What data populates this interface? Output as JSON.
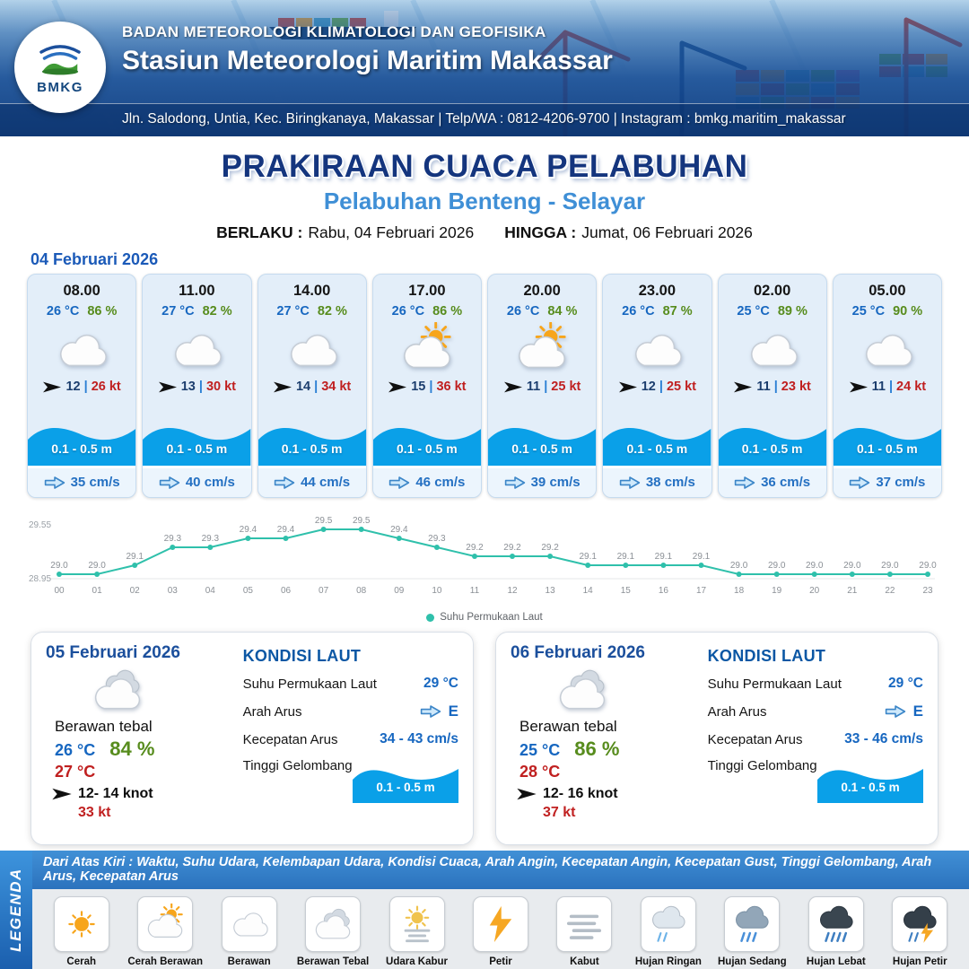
{
  "header": {
    "logo_text": "BMKG",
    "agency": "BADAN METEOROLOGI KLIMATOLOGI DAN GEOFISIKA",
    "station": "Stasiun Meteorologi Maritim Makassar",
    "contact": "Jln. Salodong, Untia, Kec. Biringkanaya, Makassar | Telp/WA : 0812-4206-9700 | Instagram : bmkg.maritim_makassar"
  },
  "title": {
    "main": "PRAKIRAAN CUACA PELABUHAN",
    "subtitle": "Pelabuhan Benteng - Selayar",
    "valid_label": "BERLAKU :",
    "valid_value": "Rabu, 04 Februari 2026",
    "until_label": "HINGGA :",
    "until_value": "Jumat, 06 Februari 2026"
  },
  "forecast_date": "04 Februari 2026",
  "labels": {
    "wind_sep": "|"
  },
  "hourly": [
    {
      "time": "08.00",
      "temp": "26 °C",
      "humidity": "86 %",
      "icon": "berawan",
      "wind": "12",
      "gust": "26 kt",
      "wave": "0.1 - 0.5 m",
      "current": "35 cm/s"
    },
    {
      "time": "11.00",
      "temp": "27 °C",
      "humidity": "82 %",
      "icon": "berawan",
      "wind": "13",
      "gust": "30 kt",
      "wave": "0.1 - 0.5 m",
      "current": "40 cm/s"
    },
    {
      "time": "14.00",
      "temp": "27 °C",
      "humidity": "82 %",
      "icon": "berawan",
      "wind": "14",
      "gust": "34 kt",
      "wave": "0.1 - 0.5 m",
      "current": "44 cm/s"
    },
    {
      "time": "17.00",
      "temp": "26 °C",
      "humidity": "86 %",
      "icon": "cerah-berawan",
      "wind": "15",
      "gust": "36 kt",
      "wave": "0.1 - 0.5 m",
      "current": "46 cm/s"
    },
    {
      "time": "20.00",
      "temp": "26 °C",
      "humidity": "84 %",
      "icon": "cerah-berawan",
      "wind": "11",
      "gust": "25 kt",
      "wave": "0.1 - 0.5 m",
      "current": "39 cm/s"
    },
    {
      "time": "23.00",
      "temp": "26 °C",
      "humidity": "87 %",
      "icon": "berawan",
      "wind": "12",
      "gust": "25 kt",
      "wave": "0.1 - 0.5 m",
      "current": "38 cm/s"
    },
    {
      "time": "02.00",
      "temp": "25 °C",
      "humidity": "89 %",
      "icon": "berawan",
      "wind": "11",
      "gust": "23 kt",
      "wave": "0.1 - 0.5 m",
      "current": "36 cm/s"
    },
    {
      "time": "05.00",
      "temp": "25 °C",
      "humidity": "90 %",
      "icon": "berawan",
      "wind": "11",
      "gust": "24 kt",
      "wave": "0.1 - 0.5 m",
      "current": "37 cm/s"
    }
  ],
  "chart_data": {
    "type": "line",
    "series_name": "Suhu Permukaan Laut",
    "x": [
      "00",
      "01",
      "02",
      "03",
      "04",
      "05",
      "06",
      "07",
      "08",
      "09",
      "10",
      "11",
      "12",
      "13",
      "14",
      "15",
      "16",
      "17",
      "18",
      "19",
      "20",
      "21",
      "22",
      "23"
    ],
    "values": [
      29.0,
      29.0,
      29.1,
      29.3,
      29.3,
      29.4,
      29.4,
      29.5,
      29.5,
      29.4,
      29.3,
      29.2,
      29.2,
      29.2,
      29.1,
      29.1,
      29.1,
      29.1,
      29.0,
      29.0,
      29.0,
      29.0,
      29.0,
      29.0
    ],
    "ylim": [
      28.95,
      29.55
    ],
    "line_color": "#2fc0ab",
    "grid": false,
    "legend_position": "bottom"
  },
  "sea_labels": {
    "title": "KONDISI LAUT",
    "sst": "Suhu Permukaan Laut",
    "dir": "Arah Arus",
    "speed": "Kecepatan Arus",
    "wave": "Tinggi Gelombang"
  },
  "daily": [
    {
      "date": "05 Februari 2026",
      "icon": "berawan-tebal",
      "condition": "Berawan tebal",
      "temp_min": "26 °C",
      "humidity": "84 %",
      "temp_max": "27 °C",
      "wind": "12- 14 knot",
      "gust": "33 kt",
      "sea_temp": "29 °C",
      "current_dir": "E",
      "current_speed": "34 - 43 cm/s",
      "wave": "0.1 - 0.5 m"
    },
    {
      "date": "06 Februari 2026",
      "icon": "berawan-tebal",
      "condition": "Berawan tebal",
      "temp_min": "25 °C",
      "humidity": "86 %",
      "temp_max": "28 °C",
      "wind": "12- 16 knot",
      "gust": "37 kt",
      "sea_temp": "29 °C",
      "current_dir": "E",
      "current_speed": "33 - 46 cm/s",
      "wave": "0.1 - 0.5 m"
    }
  ],
  "legend": {
    "title": "LEGENDA",
    "description": "Dari Atas Kiri : Waktu, Suhu Udara, Kelembapan Udara, Kondisi Cuaca, Arah Angin, Kecepatan Angin, Kecepatan Gust, Tinggi Gelombang, Arah Arus, Kecepatan Arus",
    "items": [
      {
        "label": "Cerah",
        "icon": "cerah"
      },
      {
        "label": "Cerah Berawan",
        "icon": "cerah-berawan"
      },
      {
        "label": "Berawan",
        "icon": "berawan"
      },
      {
        "label": "Berawan Tebal",
        "icon": "berawan-tebal"
      },
      {
        "label": "Udara Kabur",
        "icon": "udara-kabur"
      },
      {
        "label": "Petir",
        "icon": "petir"
      },
      {
        "label": "Kabut",
        "icon": "kabut"
      },
      {
        "label": "Hujan Ringan",
        "icon": "hujan-ringan"
      },
      {
        "label": "Hujan Sedang",
        "icon": "hujan-sedang"
      },
      {
        "label": "Hujan Lebat",
        "icon": "hujan-lebat"
      },
      {
        "label": "Hujan Petir",
        "icon": "hujan-petir"
      }
    ]
  },
  "colors": {
    "header_blue": "#1b5fae",
    "temp_blue": "#1767c0",
    "humidity_green": "#578c1d",
    "gust_red": "#c02020",
    "wave_blue": "#0aa0e8",
    "chart_teal": "#2fc0ab"
  }
}
